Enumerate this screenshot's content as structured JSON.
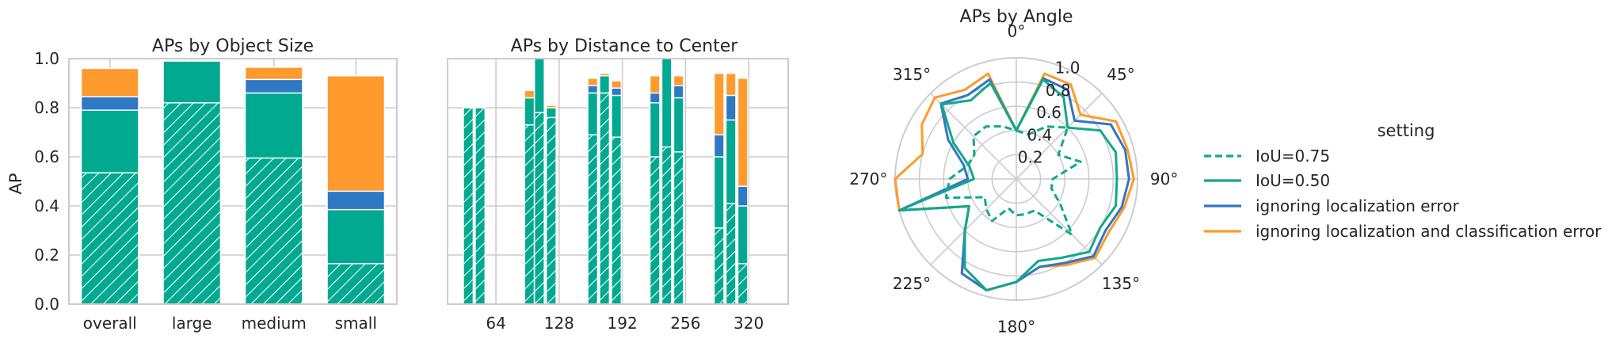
{
  "chart_data": [
    {
      "type": "bar",
      "title": "APs by Object Size",
      "xlabel": "",
      "ylabel": "AP",
      "ylim": [
        0,
        1.0
      ],
      "yticks": [
        "0.0",
        "0.2",
        "0.4",
        "0.6",
        "0.8",
        "1.0"
      ],
      "categories": [
        "overall",
        "large",
        "medium",
        "small"
      ],
      "stacked_cumulative": true,
      "series": [
        {
          "name": "IoU=0.75",
          "values": [
            0.535,
            0.82,
            0.595,
            0.165
          ]
        },
        {
          "name": "IoU=0.50",
          "values": [
            0.79,
            0.99,
            0.86,
            0.385
          ]
        },
        {
          "name": "ignoring localization error",
          "values": [
            0.845,
            0.99,
            0.915,
            0.46
          ]
        },
        {
          "name": "ignoring localization and classification error",
          "values": [
            0.96,
            0.99,
            0.965,
            0.93
          ]
        }
      ],
      "grid": true,
      "legend": "none"
    },
    {
      "type": "bar",
      "title": "APs by Distance to Center",
      "xlabel": "",
      "ylabel": "",
      "ylim": [
        0,
        1.0
      ],
      "xlim": [
        15,
        360
      ],
      "xticks": [
        "64",
        "128",
        "192",
        "256",
        "320"
      ],
      "stacked_cumulative": true,
      "x": [
        36,
        48,
        98,
        108,
        120,
        162,
        174,
        186,
        225,
        237,
        249,
        290,
        302,
        314
      ],
      "series": [
        {
          "name": "IoU=0.75",
          "values": [
            0.8,
            0.8,
            0.73,
            0.78,
            0.76,
            0.69,
            0.86,
            0.68,
            0.6,
            0.64,
            0.62,
            0.31,
            0.41,
            0.165
          ]
        },
        {
          "name": "IoU=0.50",
          "values": [
            0.8,
            0.8,
            0.84,
            1.0,
            0.8,
            0.86,
            0.93,
            0.85,
            0.82,
            1.0,
            0.84,
            0.6,
            0.75,
            0.4
          ]
        },
        {
          "name": "ignoring localization error",
          "values": [
            0.8,
            0.8,
            0.84,
            1.0,
            0.8,
            0.89,
            0.93,
            0.88,
            0.86,
            1.0,
            0.89,
            0.69,
            0.85,
            0.48
          ]
        },
        {
          "name": "ignoring localization and classification error",
          "values": [
            0.8,
            0.8,
            0.87,
            1.0,
            0.81,
            0.92,
            0.94,
            0.91,
            0.93,
            1.0,
            0.93,
            0.94,
            0.94,
            0.92
          ]
        }
      ],
      "grid": true,
      "legend": "none"
    },
    {
      "type": "line",
      "subtype": "polar",
      "title": "APs by Angle",
      "rticks": [
        "0.2",
        "0.4",
        "0.6",
        "0.8",
        "1.0"
      ],
      "rlim": [
        0,
        1.0
      ],
      "theta_labels": [
        "0°",
        "45°",
        "90°",
        "135°",
        "180°",
        "225°",
        "270°",
        "315°"
      ],
      "theta_deg": [
        0,
        15,
        30,
        45,
        60,
        75,
        90,
        105,
        120,
        135,
        150,
        165,
        180,
        195,
        210,
        225,
        240,
        255,
        270,
        285,
        300,
        315,
        330,
        345,
        360
      ],
      "series": [
        {
          "name": "IoU=0.75",
          "values": [
            0.4,
            0.38,
            0.5,
            0.6,
            0.4,
            0.55,
            0.3,
            0.3,
            0.42,
            0.65,
            0.3,
            0.3,
            0.3,
            0.25,
            0.4,
            0.35,
            0.3,
            0.6,
            0.55,
            0.42,
            0.4,
            0.5,
            0.5,
            0.45,
            0.4
          ]
        },
        {
          "name": "IoU=0.50",
          "values": [
            0.4,
            0.85,
            0.78,
            0.6,
            0.8,
            0.85,
            0.83,
            0.85,
            0.8,
            0.85,
            0.75,
            0.7,
            0.85,
            0.95,
            0.85,
            0.6,
            0.45,
            1.0,
            0.35,
            0.4,
            0.6,
            0.87,
            0.75,
            0.82,
            0.4
          ]
        },
        {
          "name": "ignoring localization error",
          "values": [
            0.4,
            0.86,
            0.85,
            0.68,
            0.9,
            0.93,
            0.93,
            0.9,
            0.85,
            0.9,
            0.8,
            0.75,
            0.85,
            0.95,
            0.9,
            0.6,
            0.45,
            1.0,
            0.4,
            0.45,
            0.65,
            0.88,
            0.8,
            0.85,
            0.4
          ]
        },
        {
          "name": "ignoring localization and classification error",
          "values": [
            0.4,
            0.9,
            0.9,
            0.75,
            0.95,
            0.95,
            0.97,
            0.92,
            0.88,
            0.92,
            0.82,
            0.75,
            0.85,
            0.95,
            0.9,
            0.6,
            0.45,
            1.0,
            1.0,
            0.8,
            0.9,
            0.95,
            0.85,
            0.9,
            0.4
          ]
        }
      ],
      "grid": true,
      "legend": "right"
    }
  ],
  "legend": {
    "title": "setting",
    "items": [
      {
        "label": "IoU=0.75",
        "color": "#12a88b",
        "dash": true
      },
      {
        "label": "IoU=0.50",
        "color": "#12a88b",
        "dash": false
      },
      {
        "label": "ignoring localization error",
        "color": "#3276c4",
        "dash": false
      },
      {
        "label": "ignoring localization and classification error",
        "color": "#fd9a2b",
        "dash": false
      }
    ]
  },
  "colors": {
    "iou75": "#00a98f",
    "iou50": "#00a98f",
    "loc": "#2f78c4",
    "cls": "#ff9a2e",
    "line_green": "#12a88b",
    "line_blue": "#3276c4",
    "line_orange": "#fd9a2b"
  }
}
